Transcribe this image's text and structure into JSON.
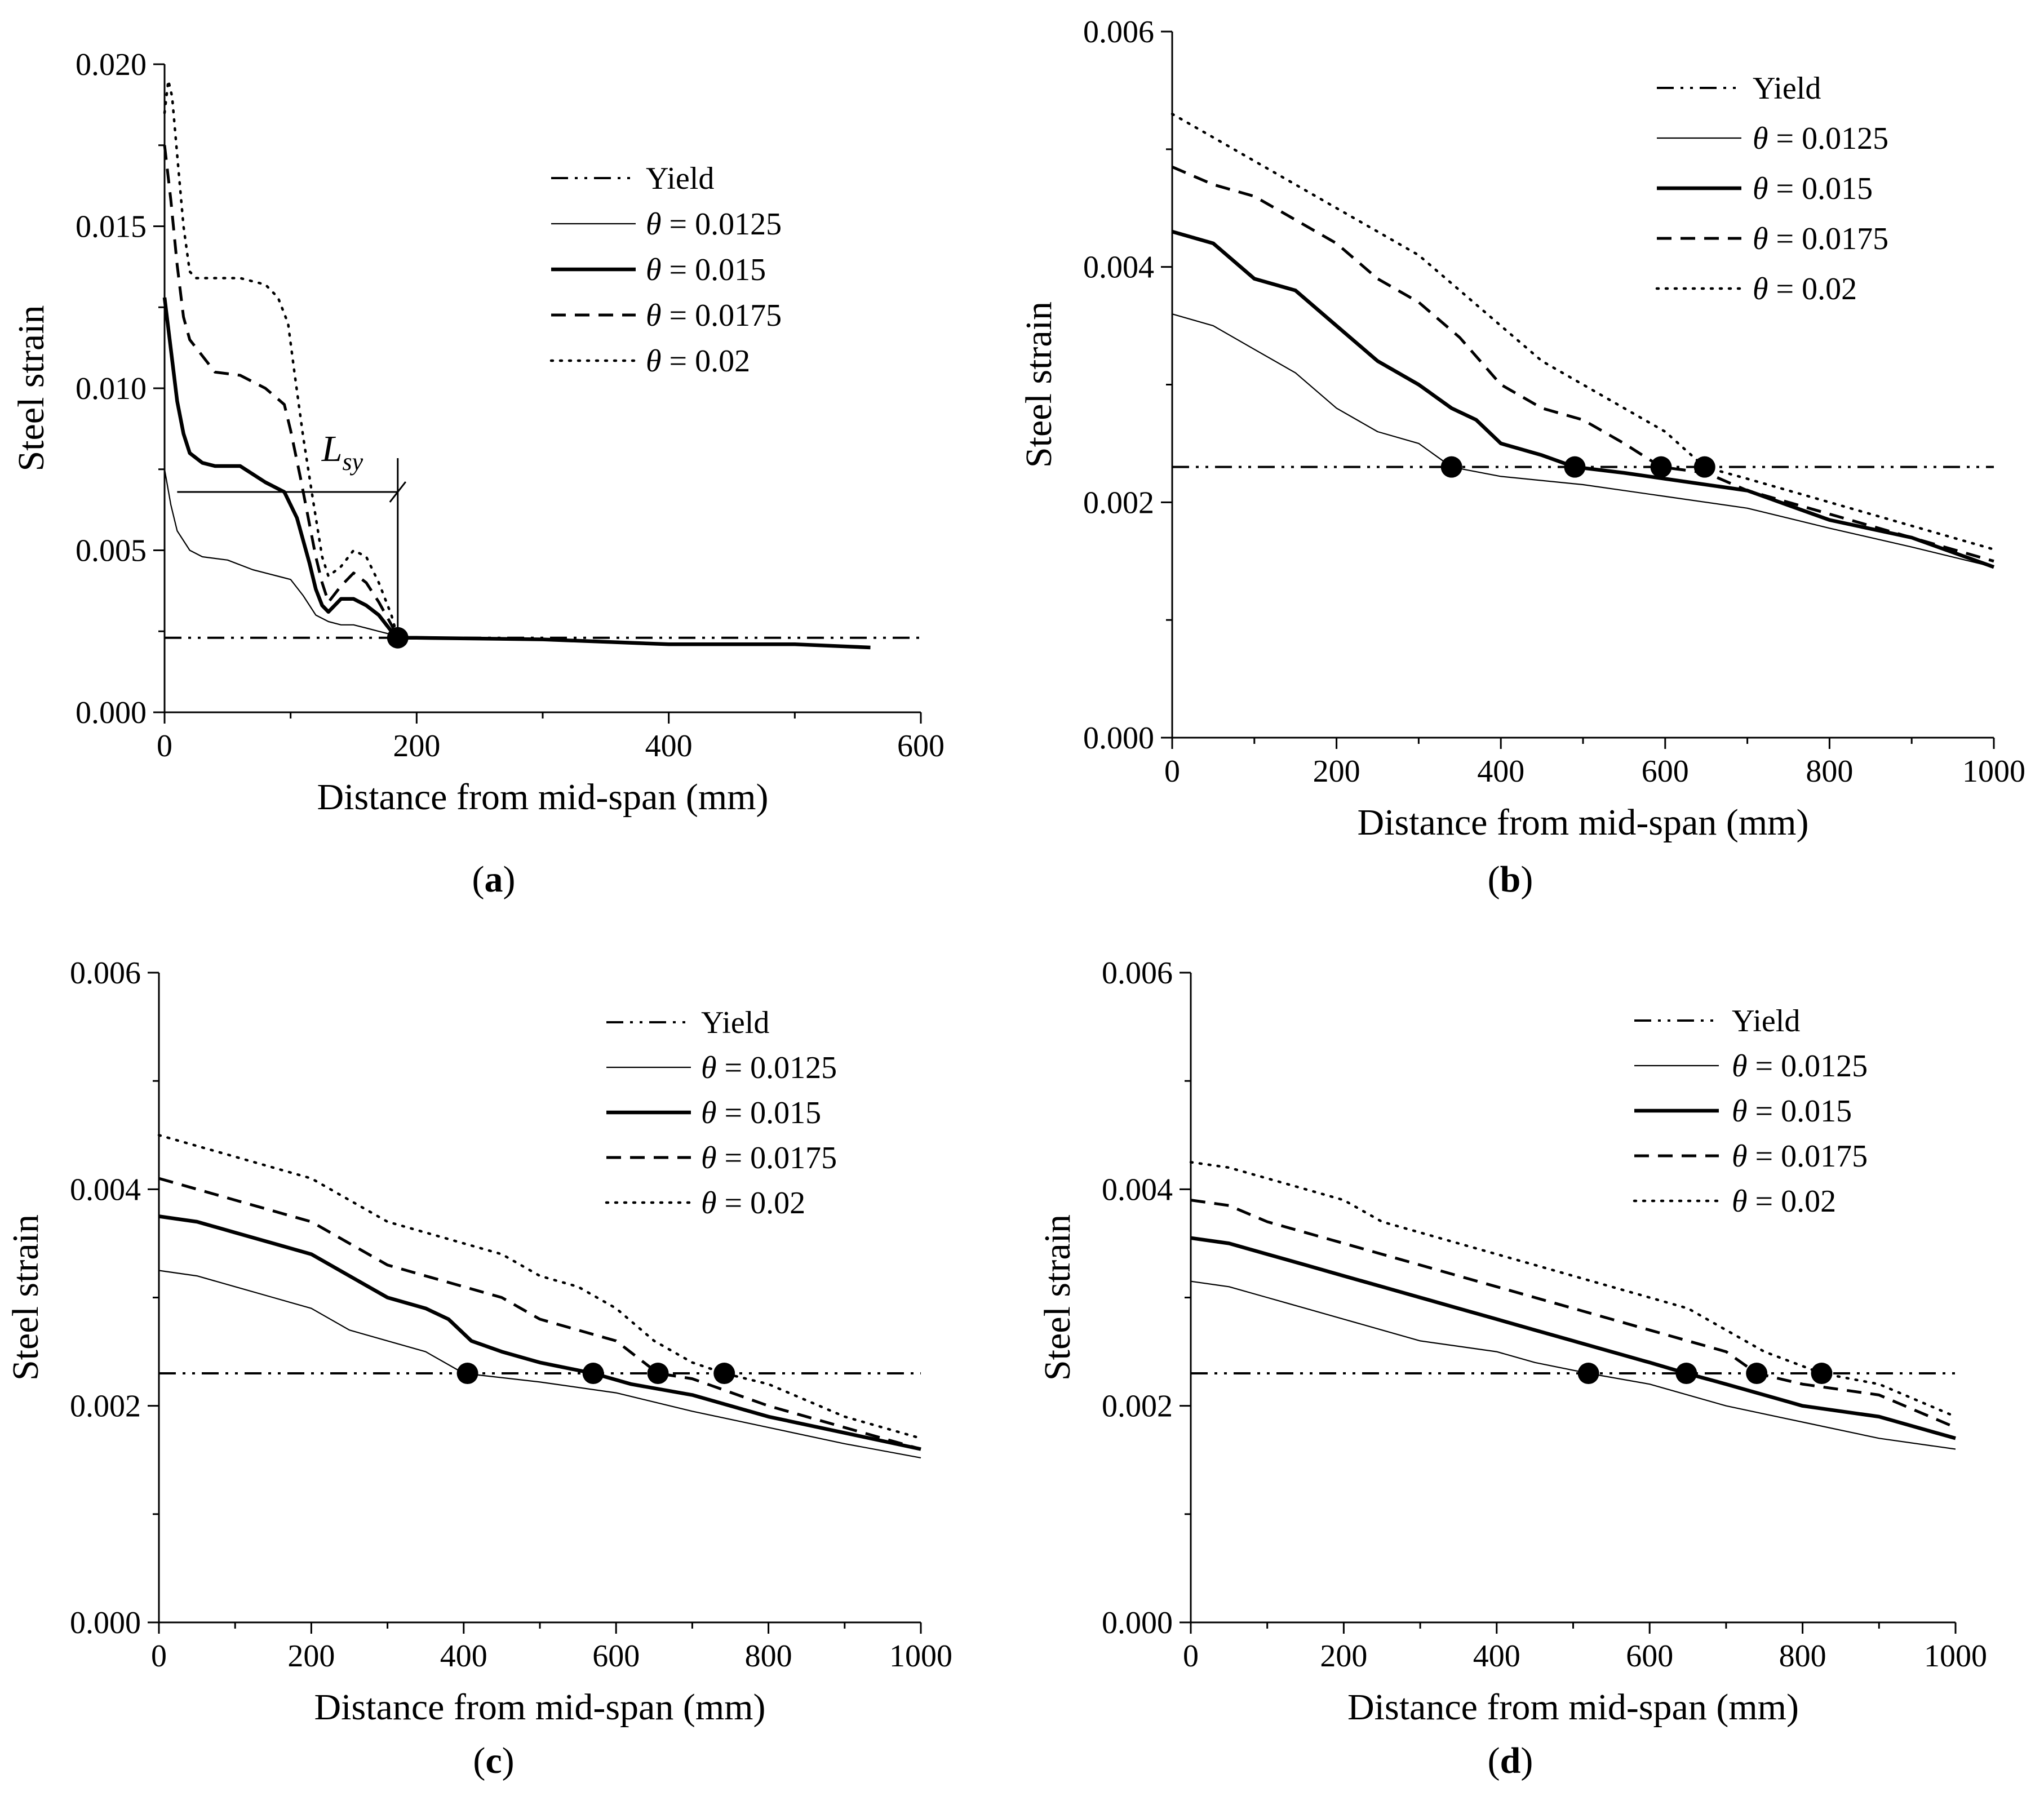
{
  "figure": {
    "captions": [
      "(a)",
      "(b)",
      "(c)",
      "(d)"
    ]
  },
  "chart_data": [
    {
      "type": "line",
      "panel": "a",
      "caption_letter": "a",
      "xlabel": "Distance from mid-span (mm)",
      "ylabel": "Steel strain",
      "xlim": [
        0,
        600
      ],
      "ylim": [
        0,
        0.02
      ],
      "xticks": [
        0,
        200,
        400,
        600
      ],
      "xtick_labels": [
        "0",
        "200",
        "400",
        "600"
      ],
      "yticks": [
        0,
        0.005,
        0.01,
        0.015,
        0.02
      ],
      "ytick_labels": [
        "0.000",
        "0.005",
        "0.010",
        "0.015",
        "0.020"
      ],
      "legend_position": "top-right",
      "annotation": {
        "text": "L",
        "subscript": "sy",
        "from_x": 10,
        "to_x": 185,
        "y": 0.0068
      },
      "yield": {
        "name": "Yield",
        "value": 0.0023
      },
      "series": [
        {
          "label_symbol": "θ",
          "label_value": "= 0.0125",
          "style": "thin",
          "x": [
            0,
            5,
            10,
            20,
            30,
            50,
            70,
            90,
            100,
            110,
            120,
            130,
            140,
            150,
            160,
            170,
            180,
            185,
            200,
            300,
            400,
            500,
            560
          ],
          "y": [
            0.0075,
            0.0064,
            0.0056,
            0.005,
            0.0048,
            0.0047,
            0.0044,
            0.0042,
            0.0041,
            0.0036,
            0.003,
            0.0028,
            0.0027,
            0.0027,
            0.0026,
            0.0025,
            0.0024,
            0.0023,
            0.0023,
            0.00225,
            0.0021,
            0.0021,
            0.002
          ]
        },
        {
          "label_symbol": "θ",
          "label_value": "= 0.015",
          "style": "thick",
          "x": [
            0,
            5,
            10,
            15,
            20,
            30,
            40,
            60,
            80,
            95,
            105,
            115,
            120,
            125,
            130,
            140,
            150,
            160,
            170,
            180,
            185,
            200,
            300,
            400,
            500,
            560
          ],
          "y": [
            0.0128,
            0.0112,
            0.0096,
            0.0086,
            0.008,
            0.0077,
            0.0076,
            0.0076,
            0.0071,
            0.0068,
            0.006,
            0.0046,
            0.0038,
            0.0033,
            0.0031,
            0.0035,
            0.0035,
            0.0033,
            0.003,
            0.0025,
            0.0023,
            0.0023,
            0.00225,
            0.0021,
            0.0021,
            0.002
          ]
        },
        {
          "label_symbol": "θ",
          "label_value": "= 0.0175",
          "style": "dash",
          "x": [
            0,
            5,
            10,
            15,
            20,
            30,
            40,
            60,
            80,
            95,
            100,
            108,
            115,
            120,
            125,
            130,
            140,
            150,
            160,
            170,
            180,
            185
          ],
          "y": [
            0.0175,
            0.0158,
            0.0138,
            0.0122,
            0.0115,
            0.011,
            0.0105,
            0.0104,
            0.01,
            0.0095,
            0.0087,
            0.0072,
            0.0058,
            0.0048,
            0.004,
            0.0034,
            0.0039,
            0.0043,
            0.004,
            0.0034,
            0.0027,
            0.0023
          ]
        },
        {
          "label_symbol": "θ",
          "label_value": "= 0.02",
          "style": "dot",
          "x": [
            0,
            3,
            6,
            10,
            15,
            20,
            25,
            40,
            60,
            80,
            90,
            98,
            103,
            110,
            118,
            125,
            130,
            140,
            150,
            160,
            170,
            180,
            185
          ],
          "y": [
            0.0185,
            0.0195,
            0.019,
            0.0172,
            0.015,
            0.0136,
            0.0134,
            0.0134,
            0.0134,
            0.0132,
            0.0128,
            0.012,
            0.0105,
            0.0085,
            0.0065,
            0.0048,
            0.0042,
            0.0045,
            0.005,
            0.0048,
            0.004,
            0.003,
            0.0023
          ]
        }
      ],
      "yield_points_x": [
        185
      ]
    },
    {
      "type": "line",
      "panel": "b",
      "caption_letter": "b",
      "xlabel": "Distance from mid-span (mm)",
      "ylabel": "Steel strain",
      "xlim": [
        0,
        1000
      ],
      "ylim": [
        0,
        0.006
      ],
      "xticks": [
        0,
        200,
        400,
        600,
        800,
        1000
      ],
      "xtick_labels": [
        "0",
        "200",
        "400",
        "600",
        "800",
        "1000"
      ],
      "yticks": [
        0,
        0.002,
        0.004,
        0.006
      ],
      "ytick_labels": [
        "0.000",
        "0.002",
        "0.004",
        "0.006"
      ],
      "legend_position": "top-right",
      "yield": {
        "name": "Yield",
        "value": 0.0023
      },
      "series": [
        {
          "label_symbol": "θ",
          "label_value": "= 0.0125",
          "style": "thin",
          "x": [
            0,
            50,
            100,
            150,
            200,
            250,
            300,
            340,
            400,
            500,
            600,
            700,
            800,
            900,
            1000
          ],
          "y": [
            0.0036,
            0.0035,
            0.0033,
            0.0031,
            0.0028,
            0.0026,
            0.0025,
            0.0023,
            0.00222,
            0.00215,
            0.00205,
            0.00195,
            0.00178,
            0.00162,
            0.00145
          ]
        },
        {
          "label_symbol": "θ",
          "label_value": "= 0.015",
          "style": "thick",
          "x": [
            0,
            50,
            100,
            150,
            200,
            250,
            300,
            340,
            370,
            400,
            450,
            490,
            550,
            600,
            700,
            800,
            900,
            1000
          ],
          "y": [
            0.0043,
            0.0042,
            0.0039,
            0.0038,
            0.0035,
            0.0032,
            0.003,
            0.0028,
            0.0027,
            0.0025,
            0.0024,
            0.0023,
            0.00225,
            0.0022,
            0.0021,
            0.00185,
            0.0017,
            0.00145
          ]
        },
        {
          "label_symbol": "θ",
          "label_value": "= 0.0175",
          "style": "dash",
          "x": [
            0,
            50,
            100,
            150,
            200,
            250,
            300,
            350,
            400,
            450,
            500,
            550,
            595,
            650,
            700,
            800,
            900,
            1000
          ],
          "y": [
            0.00485,
            0.0047,
            0.0046,
            0.0044,
            0.0042,
            0.0039,
            0.0037,
            0.0034,
            0.003,
            0.0028,
            0.0027,
            0.0025,
            0.0023,
            0.00225,
            0.0021,
            0.0019,
            0.0017,
            0.0015
          ]
        },
        {
          "label_symbol": "θ",
          "label_value": "= 0.02",
          "style": "dot",
          "x": [
            0,
            50,
            100,
            150,
            200,
            250,
            300,
            350,
            400,
            450,
            500,
            550,
            600,
            648,
            700,
            800,
            900,
            1000
          ],
          "y": [
            0.0053,
            0.0051,
            0.0049,
            0.0047,
            0.0045,
            0.0043,
            0.0041,
            0.0038,
            0.0035,
            0.0032,
            0.003,
            0.0028,
            0.0026,
            0.0023,
            0.0022,
            0.002,
            0.0018,
            0.0016
          ]
        }
      ],
      "yield_points_x": [
        340,
        490,
        595,
        648
      ]
    },
    {
      "type": "line",
      "panel": "c",
      "caption_letter": "c",
      "xlabel": "Distance from mid-span (mm)",
      "ylabel": "Steel strain",
      "xlim": [
        0,
        1000
      ],
      "ylim": [
        0,
        0.006
      ],
      "xticks": [
        0,
        200,
        400,
        600,
        800,
        1000
      ],
      "xtick_labels": [
        "0",
        "200",
        "400",
        "600",
        "800",
        "1000"
      ],
      "yticks": [
        0,
        0.002,
        0.004,
        0.006
      ],
      "ytick_labels": [
        "0.000",
        "0.002",
        "0.004",
        "0.006"
      ],
      "legend_position": "top-right",
      "yield": {
        "name": "Yield",
        "value": 0.0023
      },
      "series": [
        {
          "label_symbol": "θ",
          "label_value": "= 0.0125",
          "style": "thin",
          "x": [
            0,
            50,
            100,
            150,
            200,
            250,
            300,
            350,
            400,
            500,
            600,
            700,
            800,
            900,
            1000
          ],
          "y": [
            0.00325,
            0.0032,
            0.0031,
            0.003,
            0.0029,
            0.0027,
            0.0026,
            0.0025,
            0.0023,
            0.00222,
            0.00212,
            0.00195,
            0.0018,
            0.00165,
            0.00152
          ]
        },
        {
          "label_symbol": "θ",
          "label_value": "= 0.015",
          "style": "thick",
          "x": [
            0,
            50,
            100,
            150,
            200,
            250,
            300,
            350,
            380,
            410,
            450,
            500,
            570,
            620,
            700,
            800,
            900,
            1000
          ],
          "y": [
            0.00375,
            0.0037,
            0.0036,
            0.0035,
            0.0034,
            0.0032,
            0.003,
            0.0029,
            0.0028,
            0.0026,
            0.0025,
            0.0024,
            0.0023,
            0.0022,
            0.0021,
            0.0019,
            0.00175,
            0.0016
          ]
        },
        {
          "label_symbol": "θ",
          "label_value": "= 0.0175",
          "style": "dash",
          "x": [
            0,
            50,
            100,
            150,
            200,
            250,
            300,
            350,
            400,
            450,
            500,
            550,
            600,
            655,
            700,
            800,
            900,
            1000
          ],
          "y": [
            0.0041,
            0.004,
            0.0039,
            0.0038,
            0.0037,
            0.0035,
            0.0033,
            0.0032,
            0.0031,
            0.003,
            0.0028,
            0.0027,
            0.0026,
            0.0023,
            0.00225,
            0.002,
            0.0018,
            0.0016
          ]
        },
        {
          "label_symbol": "θ",
          "label_value": "= 0.02",
          "style": "dot",
          "x": [
            0,
            50,
            100,
            150,
            200,
            250,
            300,
            350,
            400,
            450,
            500,
            550,
            600,
            650,
            700,
            742,
            800,
            900,
            1000
          ],
          "y": [
            0.0045,
            0.0044,
            0.0043,
            0.0042,
            0.0041,
            0.0039,
            0.0037,
            0.0036,
            0.0035,
            0.0034,
            0.0032,
            0.0031,
            0.0029,
            0.0026,
            0.0024,
            0.0023,
            0.0022,
            0.0019,
            0.0017
          ]
        }
      ],
      "yield_points_x": [
        405,
        570,
        655,
        742
      ]
    },
    {
      "type": "line",
      "panel": "d",
      "caption_letter": "d",
      "xlabel": "Distance from mid-span (mm)",
      "ylabel": "Steel strain",
      "xlim": [
        0,
        1000
      ],
      "ylim": [
        0,
        0.006
      ],
      "xticks": [
        0,
        200,
        400,
        600,
        800,
        1000
      ],
      "xtick_labels": [
        "0",
        "200",
        "400",
        "600",
        "800",
        "1000"
      ],
      "yticks": [
        0,
        0.002,
        0.004,
        0.006
      ],
      "ytick_labels": [
        "0.000",
        "0.002",
        "0.004",
        "0.006"
      ],
      "legend_position": "top-right",
      "yield": {
        "name": "Yield",
        "value": 0.0023
      },
      "series": [
        {
          "label_symbol": "θ",
          "label_value": "= 0.0125",
          "style": "thin",
          "x": [
            0,
            50,
            100,
            150,
            200,
            250,
            300,
            350,
            400,
            450,
            520,
            600,
            700,
            800,
            900,
            1000
          ],
          "y": [
            0.00315,
            0.0031,
            0.003,
            0.0029,
            0.0028,
            0.0027,
            0.0026,
            0.00255,
            0.0025,
            0.0024,
            0.0023,
            0.0022,
            0.002,
            0.00185,
            0.0017,
            0.0016
          ]
        },
        {
          "label_symbol": "θ",
          "label_value": "= 0.015",
          "style": "thick",
          "x": [
            0,
            50,
            100,
            150,
            200,
            250,
            300,
            350,
            400,
            450,
            500,
            550,
            600,
            648,
            700,
            800,
            900,
            1000
          ],
          "y": [
            0.00355,
            0.0035,
            0.0034,
            0.0033,
            0.0032,
            0.0031,
            0.003,
            0.0029,
            0.0028,
            0.0027,
            0.0026,
            0.0025,
            0.0024,
            0.0023,
            0.0022,
            0.002,
            0.0019,
            0.0017
          ]
        },
        {
          "label_symbol": "θ",
          "label_value": "= 0.0175",
          "style": "dash",
          "x": [
            0,
            50,
            100,
            150,
            200,
            250,
            300,
            350,
            400,
            450,
            500,
            550,
            600,
            650,
            700,
            740,
            800,
            900,
            1000
          ],
          "y": [
            0.0039,
            0.00385,
            0.0037,
            0.0036,
            0.0035,
            0.0034,
            0.0033,
            0.0032,
            0.0031,
            0.003,
            0.0029,
            0.0028,
            0.0027,
            0.0026,
            0.0025,
            0.0023,
            0.0022,
            0.0021,
            0.0018
          ]
        },
        {
          "label_symbol": "θ",
          "label_value": "= 0.02",
          "style": "dot",
          "x": [
            0,
            50,
            100,
            150,
            200,
            250,
            300,
            350,
            400,
            450,
            500,
            550,
            600,
            650,
            700,
            750,
            825,
            900,
            1000
          ],
          "y": [
            0.00425,
            0.0042,
            0.0041,
            0.004,
            0.0039,
            0.0037,
            0.0036,
            0.0035,
            0.0034,
            0.0033,
            0.0032,
            0.0031,
            0.003,
            0.0029,
            0.0027,
            0.0025,
            0.0023,
            0.0022,
            0.0019
          ]
        }
      ],
      "yield_points_x": [
        520,
        648,
        740,
        825
      ]
    }
  ]
}
